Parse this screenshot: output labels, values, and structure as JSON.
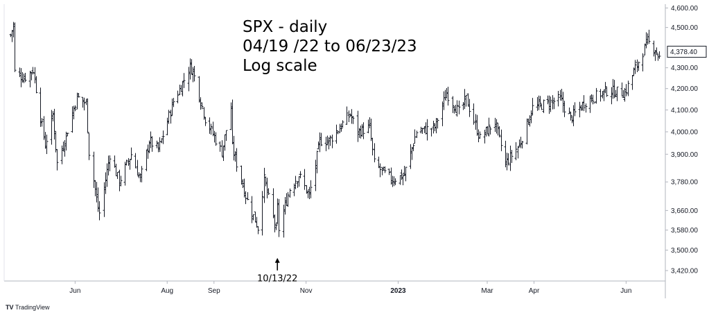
{
  "chart_data": {
    "type": "ohlc",
    "symbol": "SPX",
    "title_lines": [
      "SPX - daily",
      "04/19 /22 to 06/23/23",
      "Log scale"
    ],
    "y_scale": "log",
    "ylim": [
      3380,
      4620
    ],
    "y_ticks": [
      "4,600.00",
      "4,500.00",
      "4,400.00",
      "4,300.00",
      "4,200.00",
      "4,100.00",
      "4,000.00",
      "3,900.00",
      "3,780.00",
      "3,660.00",
      "3,580.00",
      "3,500.00",
      "3,420.00"
    ],
    "y_tick_values": [
      4600,
      4500,
      4400,
      4300,
      4200,
      4100,
      4000,
      3900,
      3780,
      3660,
      3580,
      3500,
      3420
    ],
    "current_price_label": "4,378.40",
    "current_price": 4378.4,
    "x_range": [
      "2022-04-15",
      "2023-06-27"
    ],
    "x_ticks": [
      {
        "label": "Jun",
        "date": "2022-06-01",
        "bold": false
      },
      {
        "label": "Aug",
        "date": "2022-08-01",
        "bold": false
      },
      {
        "label": "Sep",
        "date": "2022-09-01",
        "bold": false
      },
      {
        "label": "Nov",
        "date": "2022-11-01",
        "bold": false
      },
      {
        "label": "2023",
        "date": "2023-01-01",
        "bold": true
      },
      {
        "label": "Mar",
        "date": "2023-03-01",
        "bold": false
      },
      {
        "label": "Apr",
        "date": "2023-04-01",
        "bold": false
      },
      {
        "label": "Jun",
        "date": "2023-06-01",
        "bold": false
      }
    ],
    "annotation": {
      "label": "10/13/22",
      "date": "2022-10-13",
      "price": 3491
    },
    "anchors": [
      [
        "2022-04-19",
        4462
      ],
      [
        "2022-04-21",
        4512
      ],
      [
        "2022-04-22",
        4280
      ],
      [
        "2022-04-28",
        4250
      ],
      [
        "2022-05-04",
        4290
      ],
      [
        "2022-05-12",
        3940
      ],
      [
        "2022-05-17",
        4080
      ],
      [
        "2022-05-20",
        3860
      ],
      [
        "2022-05-25",
        3960
      ],
      [
        "2022-06-02",
        4160
      ],
      [
        "2022-06-08",
        4130
      ],
      [
        "2022-06-10",
        3910
      ],
      [
        "2022-06-16",
        3670
      ],
      [
        "2022-06-17",
        3650
      ],
      [
        "2022-06-24",
        3900
      ],
      [
        "2022-06-30",
        3780
      ],
      [
        "2022-07-08",
        3900
      ],
      [
        "2022-07-14",
        3790
      ],
      [
        "2022-07-20",
        3960
      ],
      [
        "2022-07-26",
        3920
      ],
      [
        "2022-08-05",
        4140
      ],
      [
        "2022-08-10",
        4210
      ],
      [
        "2022-08-16",
        4305
      ],
      [
        "2022-08-18",
        4285
      ],
      [
        "2022-08-26",
        4060
      ],
      [
        "2022-09-06",
        3910
      ],
      [
        "2022-09-12",
        4110
      ],
      [
        "2022-09-13",
        3930
      ],
      [
        "2022-09-23",
        3700
      ],
      [
        "2022-09-30",
        3590
      ],
      [
        "2022-10-04",
        3790
      ],
      [
        "2022-10-12",
        3580
      ],
      [
        "2022-10-13",
        3670
      ],
      [
        "2022-10-14",
        3585
      ],
      [
        "2022-10-21",
        3750
      ],
      [
        "2022-10-27",
        3810
      ],
      [
        "2022-11-03",
        3720
      ],
      [
        "2022-11-10",
        3960
      ],
      [
        "2022-11-16",
        3960
      ],
      [
        "2022-11-30",
        4080
      ],
      [
        "2022-12-05",
        4000
      ],
      [
        "2022-12-13",
        4020
      ],
      [
        "2022-12-16",
        3860
      ],
      [
        "2022-12-22",
        3820
      ],
      [
        "2022-12-28",
        3790
      ],
      [
        "2023-01-05",
        3810
      ],
      [
        "2023-01-13",
        4000
      ],
      [
        "2023-01-25",
        4020
      ],
      [
        "2023-02-02",
        4180
      ],
      [
        "2023-02-10",
        4090
      ],
      [
        "2023-02-15",
        4150
      ],
      [
        "2023-02-24",
        3970
      ],
      [
        "2023-03-06",
        4045
      ],
      [
        "2023-03-13",
        3860
      ],
      [
        "2023-03-22",
        3940
      ],
      [
        "2023-03-31",
        4110
      ],
      [
        "2023-04-18",
        4150
      ],
      [
        "2023-04-25",
        4060
      ],
      [
        "2023-05-05",
        4140
      ],
      [
        "2023-05-19",
        4190
      ],
      [
        "2023-05-31",
        4180
      ],
      [
        "2023-06-06",
        4280
      ],
      [
        "2023-06-15",
        4430
      ],
      [
        "2023-06-20",
        4390
      ],
      [
        "2023-06-23",
        4348
      ]
    ]
  },
  "branding": {
    "logo_mark": "TV",
    "logo_text": "TradingView"
  },
  "colors": {
    "bar": "#131722",
    "axis": "#b2b5be",
    "background": "#ffffff",
    "price_tag_bg": "#ffffff"
  }
}
